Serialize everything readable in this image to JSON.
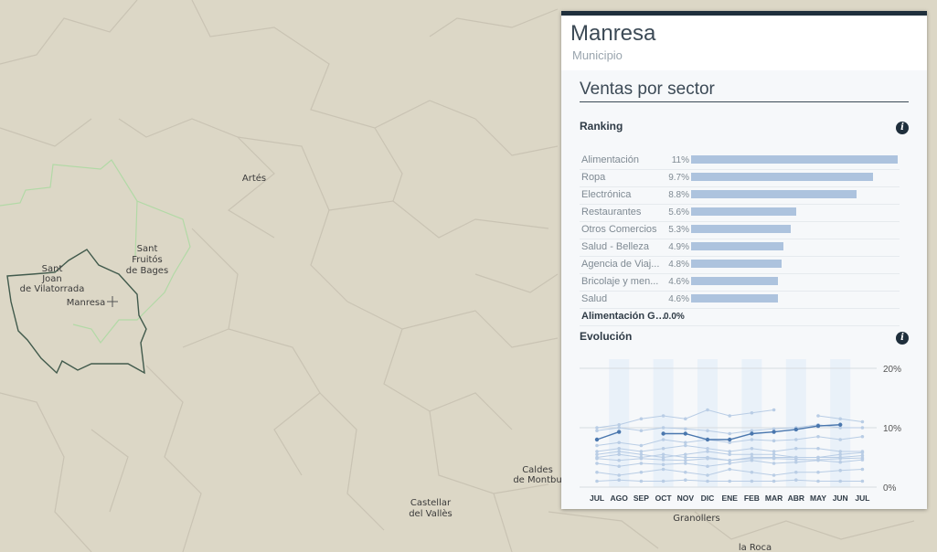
{
  "map": {
    "places": [
      {
        "name": "Artés"
      },
      {
        "name": "Sant"
      },
      {
        "name": "Fruitós"
      },
      {
        "name": "de Bages"
      },
      {
        "name": "Sant"
      },
      {
        "name": "Joan"
      },
      {
        "name": "de Vilatorrada"
      },
      {
        "name": "Manresa"
      },
      {
        "name": "Caldes"
      },
      {
        "name": "de Montbu"
      },
      {
        "name": "Castellar"
      },
      {
        "name": "del Vallès"
      },
      {
        "name": "Granollers"
      },
      {
        "name": "la Roca"
      }
    ]
  },
  "panel": {
    "title": "Manresa",
    "subtitle": "Municipio",
    "section_title": "Ventas por sector",
    "ranking_title": "Ranking",
    "evolution_title": "Evolución",
    "info_glyph": "i",
    "ranking": [
      {
        "label": "Alimentación",
        "value_text": "11%",
        "value": 11
      },
      {
        "label": "Ropa",
        "value_text": "9.7%",
        "value": 9.7
      },
      {
        "label": "Electrónica",
        "value_text": "8.8%",
        "value": 8.8
      },
      {
        "label": "Restaurantes",
        "value_text": "5.6%",
        "value": 5.6
      },
      {
        "label": "Otros Comercios",
        "value_text": "5.3%",
        "value": 5.3
      },
      {
        "label": "Salud - Belleza",
        "value_text": "4.9%",
        "value": 4.9
      },
      {
        "label": "Agencia de Viaj...",
        "value_text": "4.8%",
        "value": 4.8
      },
      {
        "label": "Bricolaje y men...",
        "value_text": "4.6%",
        "value": 4.6
      },
      {
        "label": "Salud",
        "value_text": "4.6%",
        "value": 4.6
      },
      {
        "label": "Alimentación Gr...",
        "value_text": "0.0%",
        "value": 0
      }
    ]
  },
  "chart_data": {
    "type": "line",
    "x": [
      "JUL",
      "AGO",
      "SEP",
      "OCT",
      "NOV",
      "DIC",
      "ENE",
      "FEB",
      "MAR",
      "ABR",
      "MAY",
      "JUN",
      "JUL"
    ],
    "ylim": [
      0,
      20
    ],
    "y_ticks": [
      "20%",
      "10%",
      "0%"
    ],
    "y_tick_values": [
      20,
      10,
      0
    ],
    "highlight_color": "#4a77ae",
    "faded_color": "#b9cde5",
    "series": [
      {
        "highlight": true,
        "values": [
          8,
          9.3,
          null,
          9,
          9,
          8,
          8,
          9,
          9.3,
          9.7,
          10.3,
          10.5,
          null
        ]
      },
      {
        "values": [
          10,
          10.5,
          11.5,
          12,
          11.5,
          13,
          12,
          12.5,
          13,
          null,
          12,
          11.5,
          11
        ]
      },
      {
        "values": [
          9.5,
          10,
          9.5,
          10,
          9.8,
          9.5,
          9,
          9.5,
          9.8,
          10,
          10.5,
          10,
          10
        ]
      },
      {
        "values": [
          7,
          7.5,
          7,
          8,
          7.5,
          8,
          7.5,
          8,
          7.8,
          8,
          8.5,
          8,
          8.5
        ]
      },
      {
        "values": [
          6,
          6.5,
          6,
          6.5,
          7,
          6.5,
          6,
          6.5,
          6,
          6.5,
          6.5,
          6,
          6
        ]
      },
      {
        "values": [
          5.5,
          6,
          5.5,
          5,
          5.5,
          6,
          5.5,
          5.5,
          5.5,
          5,
          5,
          5.5,
          5.8
        ]
      },
      {
        "values": [
          5,
          5.5,
          5,
          5.5,
          5,
          5,
          4.5,
          5,
          5,
          5,
          5,
          5,
          5.3
        ]
      },
      {
        "values": [
          4.8,
          4.5,
          4.8,
          4.6,
          4.5,
          4.8,
          4.5,
          4.8,
          4.8,
          4.7,
          4.6,
          4.8,
          4.9
        ]
      },
      {
        "values": [
          4,
          3.5,
          4,
          3.8,
          4,
          3.5,
          4,
          4.5,
          4,
          4.2,
          4.5,
          4.2,
          4.6
        ]
      },
      {
        "values": [
          2.5,
          2,
          2.5,
          3,
          2.5,
          2,
          3,
          2.5,
          2,
          2.5,
          2.5,
          2.8,
          3
        ]
      },
      {
        "values": [
          1,
          1.2,
          1,
          1,
          1.2,
          1,
          1,
          1,
          1,
          1.2,
          1,
          1,
          1
        ]
      }
    ]
  }
}
